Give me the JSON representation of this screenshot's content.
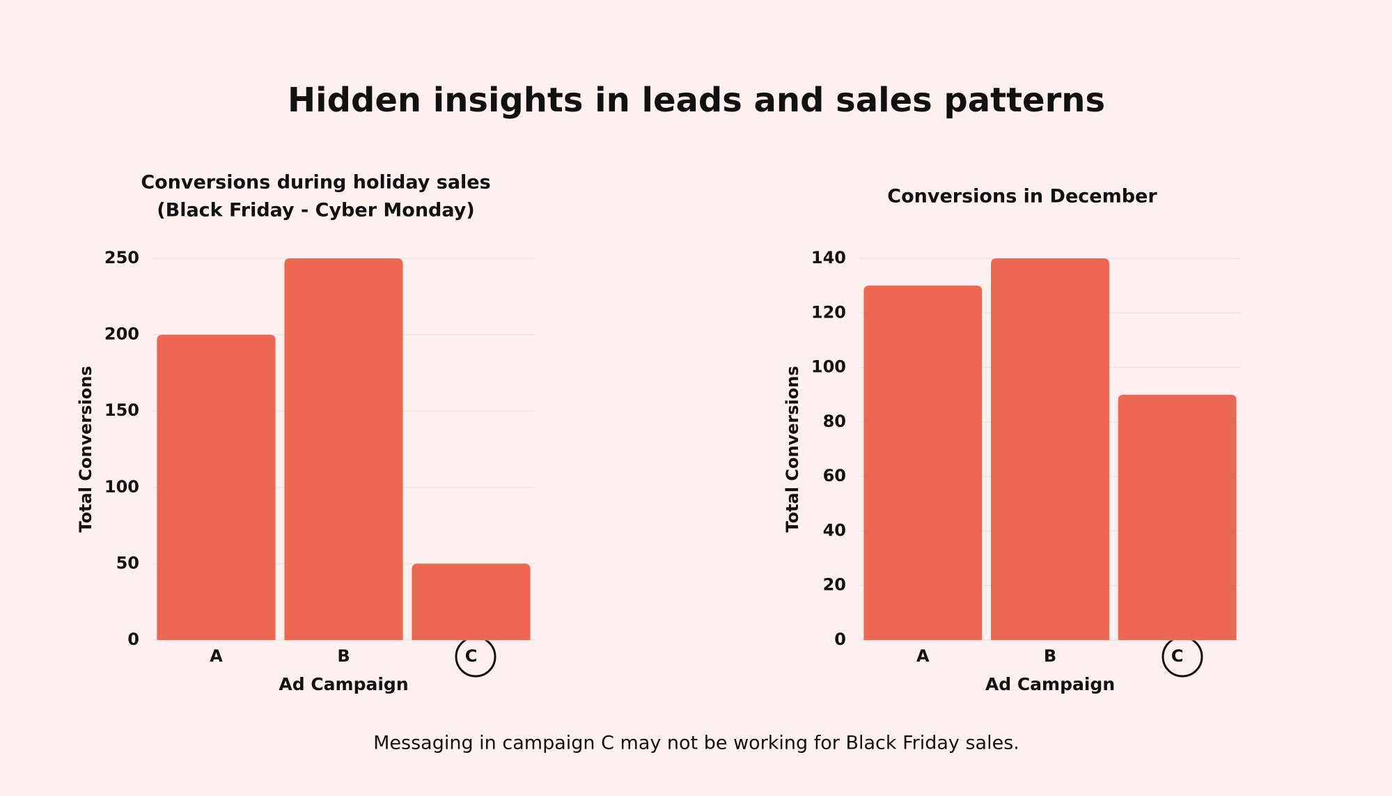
{
  "title": "Hidden insights in leads and sales patterns",
  "note": "Messaging in campaign C may not be working for Black Friday sales.",
  "chart_data": [
    {
      "type": "bar",
      "title": "Conversions during holiday sales",
      "subtitle": "(Black Friday - Cyber Monday)",
      "x_label": "Ad Campaign",
      "y_label": "Total Conversions",
      "categories": [
        "A",
        "B",
        "C"
      ],
      "values": [
        200,
        250,
        50
      ],
      "color": "#eb6751",
      "ylim": [
        0,
        250
      ],
      "yticks": [
        0,
        50,
        100,
        150,
        200,
        250
      ],
      "grid": true
    },
    {
      "type": "bar",
      "title": "Conversions in December",
      "x_label": "Ad Campaign",
      "y_label": "Total Conversions",
      "categories": [
        "A",
        "B",
        "C"
      ],
      "values": [
        130,
        140,
        90
      ],
      "color": "#eb6751",
      "ylim": [
        0,
        140
      ],
      "yticks": [
        0,
        20,
        40,
        60,
        80,
        100,
        120,
        140
      ],
      "grid": true
    }
  ]
}
